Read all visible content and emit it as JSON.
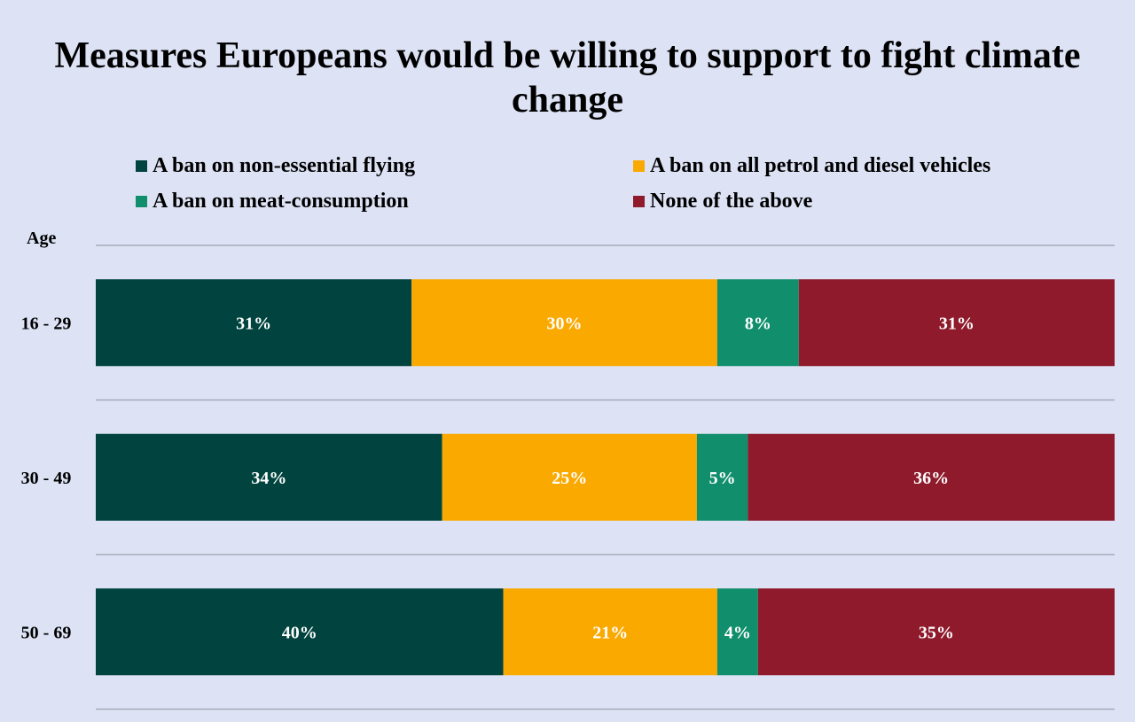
{
  "chart_data": {
    "type": "bar",
    "orientation": "horizontal",
    "stacked": true,
    "title": "Measures Europeans would be willing to support to fight climate change",
    "ylabel": "Age",
    "xlabel": "",
    "categories": [
      "16 - 29",
      "30 - 49",
      "50 - 69"
    ],
    "series": [
      {
        "name": "A ban on non-essential flying",
        "color": "#01443f",
        "values": [
          31,
          34,
          40
        ],
        "labels": [
          "31%",
          "34%",
          "40%"
        ]
      },
      {
        "name": "A ban on all petrol and diesel vehicles",
        "color": "#faa901",
        "values": [
          30,
          25,
          21
        ],
        "labels": [
          "30%",
          "25%",
          "21%"
        ]
      },
      {
        "name": "A ban on meat-consumption",
        "color": "#118f6d",
        "values": [
          8,
          5,
          4
        ],
        "labels": [
          "8%",
          "5%",
          "4%"
        ]
      },
      {
        "name": "None of the above",
        "color": "#8e1a2b",
        "values": [
          31,
          36,
          35
        ],
        "labels": [
          "31%",
          "36%",
          "35%"
        ]
      }
    ],
    "xlim": [
      0,
      100
    ],
    "legend": "top",
    "grid": true,
    "gridline_color": "#a8aab6",
    "background": "#dde3f5",
    "label_color": "#ffffff"
  }
}
